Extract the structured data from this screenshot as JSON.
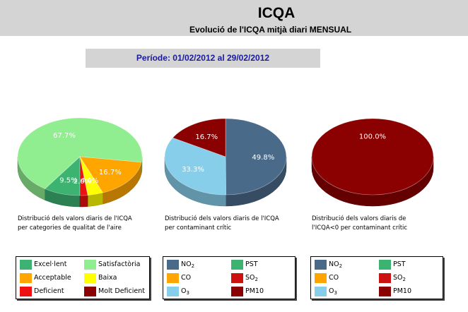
{
  "header": {
    "title": "ICQA",
    "subtitle": "Evolució de l'ICQA mitjà diari MENSUAL"
  },
  "period": "Període: 01/02/2012 al 29/02/2012",
  "chart_data": [
    {
      "type": "pie",
      "title": "Distribució dels valors diaris de l'ICQA per categories de qualitat de l'aire",
      "labels": [
        "Excel·lent",
        "Satisfactòria",
        "Acceptable",
        "Baixa",
        "Deficient",
        "Molt Deficient"
      ],
      "values": [
        9.5,
        67.7,
        16.7,
        4.0,
        2.0,
        0.0
      ],
      "data_labels": [
        "9.5%",
        "67.7%",
        "16.7%",
        "4.0%",
        "2.0%",
        ""
      ],
      "colors": [
        "#3cb371",
        "#90ee90",
        "#ffa500",
        "#ffff00",
        "#ee1111",
        "#8b0000"
      ]
    },
    {
      "type": "pie",
      "title": "Distribució dels valors diaris de l'ICQA per contaminant crític",
      "labels": [
        "NO2",
        "PST",
        "CO",
        "SO2",
        "O3",
        "PM10"
      ],
      "values": [
        49.8,
        0,
        0,
        0,
        33.3,
        16.7
      ],
      "data_labels": [
        "49.8%",
        "",
        "",
        "",
        "33.3%",
        "16.7%"
      ],
      "colors": [
        "#4a6a8a",
        "#3cb371",
        "#ffa500",
        "#cc1111",
        "#87ceeb",
        "#8b0000"
      ]
    },
    {
      "type": "pie",
      "title": "Distribució dels valors diaris de l'ICQA<0 per contaminant crític",
      "labels": [
        "NO2",
        "PST",
        "CO",
        "SO2",
        "O3",
        "PM10"
      ],
      "values": [
        0,
        0,
        0,
        0,
        0,
        100.0
      ],
      "data_labels": [
        "",
        "",
        "",
        "",
        "",
        "100.0%"
      ],
      "colors": [
        "#4a6a8a",
        "#3cb371",
        "#ffa500",
        "#cc1111",
        "#87ceeb",
        "#8b0000"
      ]
    }
  ],
  "captions": [
    {
      "line1": "Distribució dels valors diaris de l'ICQA",
      "line2": "per categories de qualitat de l'aire"
    },
    {
      "line1": "Distribució dels valors diaris de l'ICQA",
      "line2": "per contaminant crític"
    },
    {
      "line1": "Distribució dels valors diaris de",
      "line2": "l'ICQA<0 per contaminant crític"
    }
  ],
  "legend_pollutants": [
    {
      "name": "NO",
      "sub": "2",
      "color": "#4a6a8a"
    },
    {
      "name": "PST",
      "sub": "",
      "color": "#3cb371"
    },
    {
      "name": "CO",
      "sub": "",
      "color": "#ffa500"
    },
    {
      "name": "SO",
      "sub": "2",
      "color": "#cc1111"
    },
    {
      "name": "O",
      "sub": "3",
      "color": "#87ceeb"
    },
    {
      "name": "PM10",
      "sub": "",
      "color": "#8b0000"
    }
  ]
}
